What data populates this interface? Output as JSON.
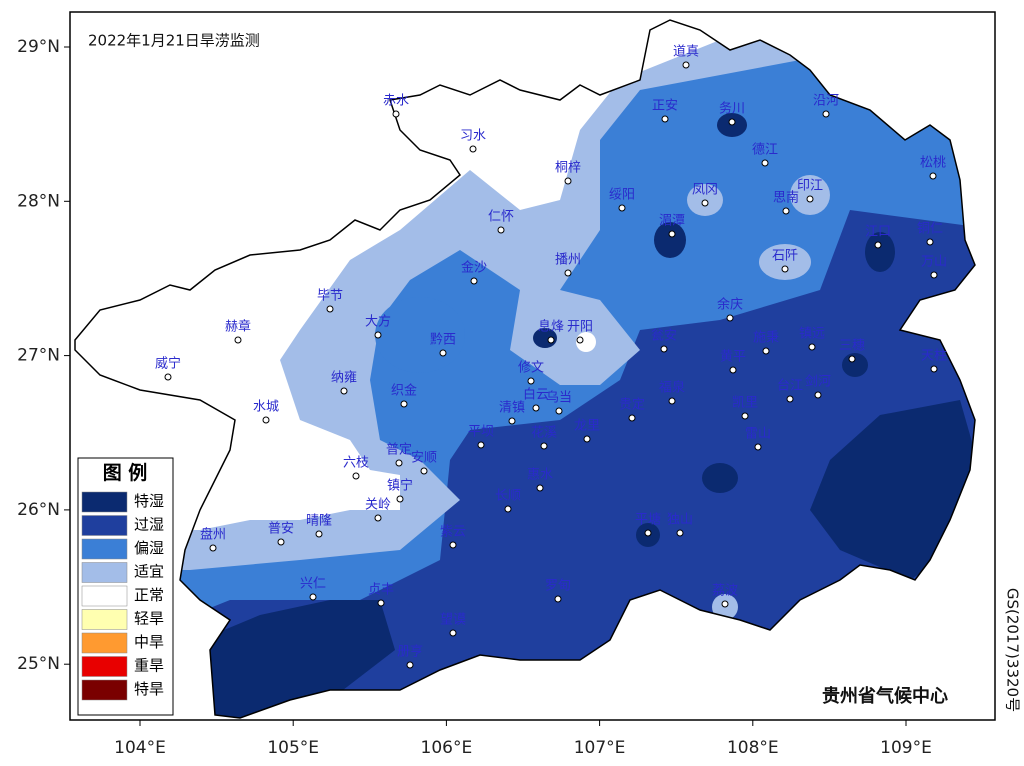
{
  "title": "2022年1月21日旱涝监测",
  "latitude_ticks": [
    {
      "value": 29,
      "label": "29°N"
    },
    {
      "value": 28,
      "label": "28°N"
    },
    {
      "value": 27,
      "label": "27°N"
    },
    {
      "value": 26,
      "label": "26°N"
    },
    {
      "value": 25,
      "label": "25°N"
    }
  ],
  "longitude_ticks": [
    {
      "value": 104,
      "label": "104°E"
    },
    {
      "value": 105,
      "label": "105°E"
    },
    {
      "value": 106,
      "label": "106°E"
    },
    {
      "value": 107,
      "label": "107°E"
    },
    {
      "value": 108,
      "label": "108°E"
    },
    {
      "value": 109,
      "label": "109°E"
    }
  ],
  "legend": {
    "title": "图 例",
    "items": [
      {
        "label": "特湿",
        "color": "#0b2a70"
      },
      {
        "label": "过湿",
        "color": "#1f3f9e"
      },
      {
        "label": "偏湿",
        "color": "#3b7fd6"
      },
      {
        "label": "适宜",
        "color": "#a3bde8"
      },
      {
        "label": "正常",
        "color": "#ffffff"
      },
      {
        "label": "轻旱",
        "color": "#ffffb0"
      },
      {
        "label": "中旱",
        "color": "#ff9a30"
      },
      {
        "label": "重旱",
        "color": "#e80000"
      },
      {
        "label": "特旱",
        "color": "#7a0000"
      }
    ]
  },
  "cities": [
    "道真",
    "赤水",
    "正安",
    "务川",
    "沿河",
    "习水",
    "桐梓",
    "德江",
    "松桃",
    "绥阳",
    "凤冈",
    "印江",
    "思南",
    "仁怀",
    "湄潭",
    "江口",
    "铜仁",
    "石阡",
    "万山",
    "金沙",
    "播州",
    "毕节",
    "余庆",
    "赫章",
    "大方",
    "息烽",
    "开阳",
    "黔西",
    "瓮安",
    "施秉",
    "镇远",
    "三穗",
    "天柱",
    "威宁",
    "纳雍",
    "修文",
    "黄平",
    "织金",
    "白云",
    "乌当",
    "贵定",
    "剑河",
    "台江",
    "水城",
    "清镇",
    "凯里",
    "福泉",
    "花溪",
    "龙里",
    "平坝",
    "雷山",
    "普定",
    "安顺",
    "六枝",
    "惠水",
    "镇宁",
    "关岭",
    "长顺",
    "盘州",
    "普安",
    "晴隆",
    "紫云",
    "平塘",
    "独山",
    "兴仁",
    "贞丰",
    "罗甸",
    "荔波",
    "望谟",
    "册亨"
  ],
  "credit": "贵州省气候中心",
  "map_number": "GS(2017)3320号"
}
